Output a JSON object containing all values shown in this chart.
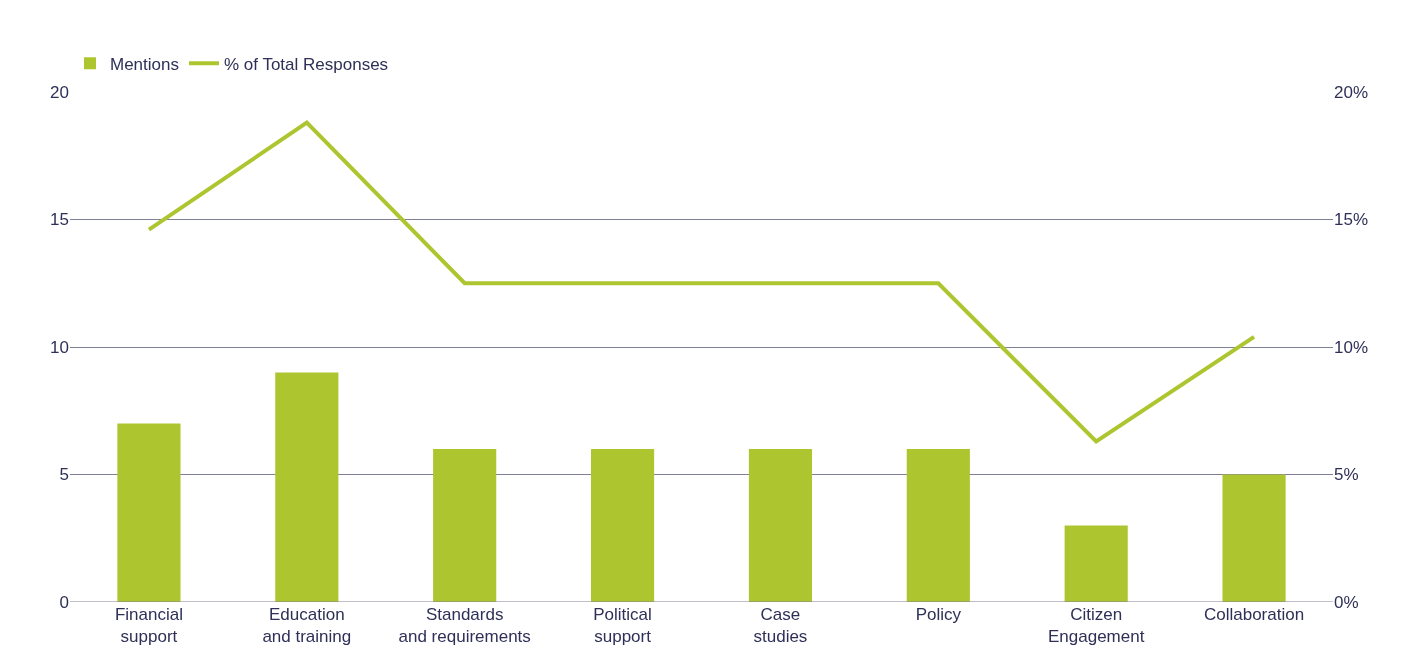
{
  "chart_data": {
    "type": "bar",
    "categories": [
      "Financial support",
      "Education and training",
      "Standards and requirements",
      "Political support",
      "Case studies",
      "Policy",
      "Citizen Engagement",
      "Collaboration"
    ],
    "series": [
      {
        "name": "Mentions",
        "color": "#adc630",
        "values": [
          7,
          9,
          6,
          6,
          6,
          6,
          3,
          5
        ]
      },
      {
        "name": "% of Total Responses",
        "type": "line",
        "axis": "y2",
        "color": "#adc630",
        "marker": "none",
        "values": [
          14.6,
          18.8,
          12.5,
          12.5,
          12.5,
          12.5,
          6.3,
          10.4
        ]
      }
    ],
    "ylim": [
      0,
      20
    ],
    "yticks": [
      0,
      5,
      10,
      15,
      20
    ],
    "y2lim": [
      0,
      20
    ],
    "y2ticks": [
      {
        "value": 0,
        "label": "0%"
      },
      {
        "value": 5,
        "label": "5%"
      },
      {
        "value": 10,
        "label": "10%"
      },
      {
        "value": 15,
        "label": "15%"
      },
      {
        "value": 20,
        "label": "20%"
      }
    ],
    "grid": "y",
    "legend": "top left"
  }
}
